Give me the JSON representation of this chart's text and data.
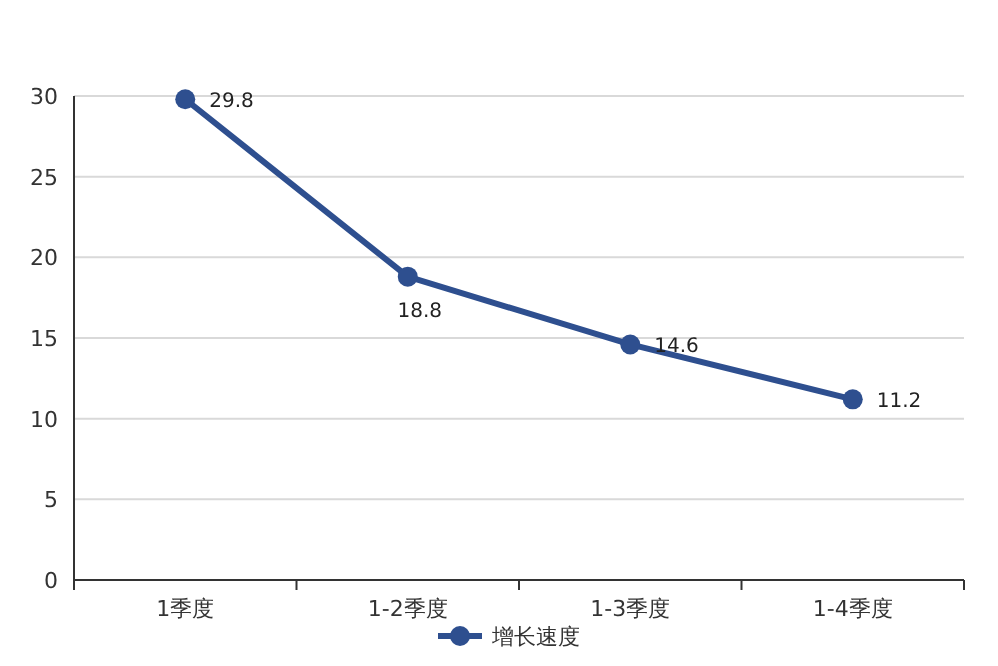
{
  "chart_data": {
    "type": "line",
    "categories": [
      "1季度",
      "1-2季度",
      "1-3季度",
      "1-4季度"
    ],
    "series": [
      {
        "name": "增长速度",
        "color": "#2e4f8f",
        "values": [
          29.8,
          18.8,
          14.6,
          11.2
        ]
      }
    ],
    "ylim": [
      0,
      30
    ],
    "yticks": [
      0,
      5,
      10,
      15,
      20,
      25,
      30
    ],
    "grid": "y",
    "legend": "bottom",
    "marker": "circle",
    "line_style": "solid",
    "data_labels": true
  }
}
